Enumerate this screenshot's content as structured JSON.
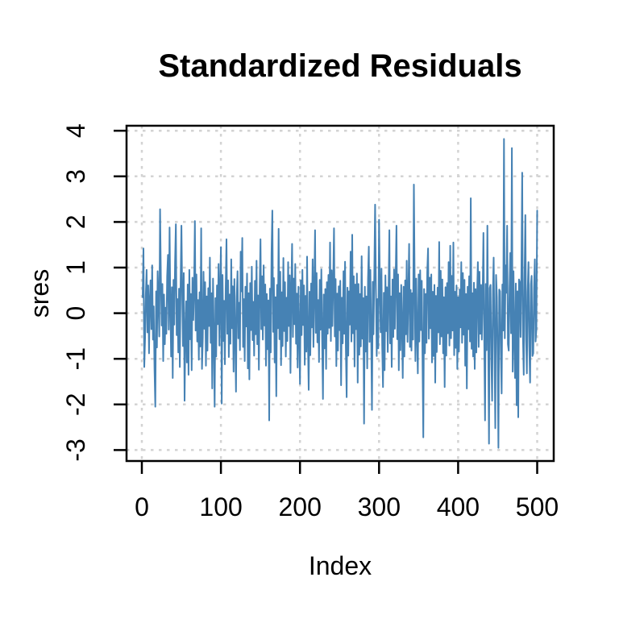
{
  "figure": {
    "background": "#ffffff"
  },
  "chart_data": {
    "type": "line",
    "title": "Standardized Residuals",
    "xlabel": "Index",
    "ylabel": "sres",
    "x_ticks": [
      0,
      100,
      200,
      300,
      400,
      500
    ],
    "y_ticks": [
      -3,
      -2,
      -1,
      0,
      1,
      2,
      3,
      4
    ],
    "xlim": [
      -19.4,
      520.9
    ],
    "ylim": [
      -3.24,
      4.11
    ],
    "x_start_index": 1,
    "grid": true,
    "grid_style": "dashed",
    "legend_position": "none",
    "line_color": "#4682B4",
    "grid_color": "#D3D3D3",
    "axis_color": "#000000",
    "values": [
      0.35,
      1.42,
      -1.18,
      -0.55,
      0.38,
      0.95,
      -0.42,
      0.61,
      -0.88,
      0.25,
      0.72,
      -0.35,
      1.05,
      -0.58,
      0.15,
      -1.22,
      -2.05,
      0.48,
      -0.75,
      0.92,
      0.33,
      -0.51,
      2.28,
      0.78,
      -0.27,
      0.64,
      -1.05,
      0.41,
      -0.68,
      0.12,
      -0.45,
      0.82,
      1.28,
      -0.36,
      1.88,
      0.22,
      -0.95,
      0.57,
      -1.42,
      0.73,
      -0.25,
      1.12,
      1.95,
      -0.48,
      0.31,
      -0.86,
      0.54,
      -1.18,
      0.67,
      1.92,
      0.35,
      -0.72,
      0.88,
      -1.92,
      -0.44,
      0.26,
      -1.08,
      0.63,
      -1.35,
      0.95,
      -0.57,
      0.42,
      -1.25,
      0.78,
      -0.15,
      0.52,
      2.02,
      -0.38,
      0.85,
      -0.62,
      0.29,
      -1.02,
      0.46,
      -0.73,
      1.86,
      -1.22,
      -0.55,
      0.91,
      -0.34,
      0.68,
      -1.15,
      0.37,
      -0.82,
      0.55,
      -0.28,
      1.22,
      -0.65,
      0.44,
      -1.65,
      0.76,
      -0.52,
      -2.05,
      0.33,
      -0.95,
      0.61,
      -0.24,
      1.08,
      -0.71,
      0.47,
      1.45,
      -1.98,
      0.84,
      -0.61,
      0.27,
      -1.12,
      0.53,
      1.62,
      -0.45,
      0.72,
      -0.96,
      0.41,
      -0.67,
      1.18,
      -0.33,
      0.59,
      -1.28,
      0.75,
      -0.48,
      -1.72,
      0.36,
      0.92,
      -0.55,
      0.23,
      -0.81,
      1.35,
      0.48,
      1.65,
      -0.74,
      0.31,
      -1.05,
      0.58,
      -0.29,
      0.87,
      -1.21,
      0.44,
      -1.45,
      0.66,
      -0.37,
      1.02,
      -0.59,
      0.25,
      -0.93,
      0.71,
      -0.46,
      1.15,
      -0.68,
      0.39,
      -1.24,
      0.57,
      1.62,
      -0.35,
      0.81,
      -0.58,
      1.05,
      -0.27,
      0.63,
      -1.15,
      0.42,
      -0.79,
      0.28,
      -2.35,
      0.54,
      -0.86,
      1.32,
      2.25,
      -0.41,
      0.77,
      -1.08,
      0.35,
      -1.82,
      0.62,
      -0.33,
      1.85,
      -0.57,
      0.91,
      -1.14,
      0.46,
      -0.72,
      1.21,
      -0.39,
      0.68,
      -0.95,
      0.34,
      -0.61,
      1.12,
      -0.28,
      0.83,
      -1.31,
      0.49,
      1.52,
      -0.52,
      0.76,
      -0.24,
      1.08,
      -0.67,
      0.43,
      -1.19,
      0.58,
      -0.35,
      -1.55,
      0.72,
      -0.48,
      0.95,
      -0.26,
      0.61,
      -1.13,
      0.38,
      -0.84,
      1.24,
      -0.55,
      -1.68,
      0.47,
      -0.92,
      0.65,
      -0.31,
      1.18,
      -0.74,
      0.52,
      1.82,
      -0.43,
      0.88,
      -0.64,
      0.29,
      -1.07,
      0.73,
      -0.36,
      0.96,
      -0.58,
      -1.88,
      0.41,
      -0.77,
      0.53,
      -1.22,
      0.68,
      -0.45,
      0.84,
      -0.32,
      1.55,
      -0.61,
      0.94,
      -0.28,
      0.67,
      1.86,
      -0.51,
      0.75,
      -1.16,
      0.43,
      -0.82,
      0.59,
      -0.37,
      0.71,
      -1.58,
      0.34,
      -0.66,
      0.92,
      -0.45,
      1.13,
      -0.78,
      -1.84,
      0.56,
      -0.93,
      0.48,
      -0.25,
      1.35,
      -0.62,
      1.72,
      -0.44,
      0.81,
      -1.17,
      0.63,
      -0.35,
      0.87,
      -1.52,
      0.64,
      -0.91,
      0.42,
      -0.73,
      1.25,
      -0.56,
      0.33,
      -2.42,
      0.58,
      -0.84,
      0.37,
      -1.21,
      0.75,
      1.46,
      -0.63,
      0.95,
      -0.41,
      -2.12,
      0.69,
      -0.46,
      0.88,
      2.38,
      0.52,
      -0.94,
      0.31,
      -0.77,
      2.05,
      0.65,
      -0.42,
      0.98,
      -0.71,
      -1.62,
      0.45,
      -1.25,
      0.83,
      -0.39,
      0.57,
      -0.85,
      0.48,
      1.82,
      -0.66,
      0.37,
      -1.18,
      0.74,
      -0.52,
      0.96,
      -0.34,
      0.78,
      1.92,
      -0.57,
      0.85,
      -1.25,
      0.44,
      -0.81,
      0.62,
      -0.35,
      -1.42,
      0.58,
      -0.95,
      0.72,
      -0.46,
      1.15,
      -0.63,
      0.39,
      1.52,
      -0.74,
      0.51,
      -0.82,
      0.44,
      -0.58,
      2.82,
      0.63,
      -1.05,
      0.76,
      -0.48,
      -1.32,
      0.85,
      -0.62,
      0.94,
      -0.37,
      0.71,
      -1.15,
      -2.72,
      0.53,
      -0.88,
      0.42,
      -0.65,
      0.91,
      1.42,
      -0.56,
      0.78,
      -0.33,
      0.85,
      -1.08,
      0.47,
      -0.94,
      0.62,
      -1.52,
      0.38,
      -0.85,
      0.56,
      -0.42,
      1.56,
      -0.68,
      0.93,
      -0.51,
      0.74,
      -0.88,
      0.35,
      -1.62,
      0.57,
      -0.93,
      0.66,
      -0.44,
      1.12,
      -0.71,
      1.48,
      -0.55,
      0.82,
      -0.38,
      1.55,
      -0.92,
      0.47,
      -0.76,
      0.61,
      -1.22,
      0.35,
      -0.84,
      0.52,
      -0.31,
      1.12,
      -0.65,
      0.88,
      -0.47,
      0.73,
      -1.15,
      0.42,
      -1.65,
      0.58,
      -0.35,
      0.81,
      -0.62,
      2.52,
      -0.78,
      0.44,
      -0.95,
      0.67,
      -1.22,
      0.53,
      -0.86,
      0.38,
      1.12,
      -0.74,
      0.91,
      -0.45,
      0.62,
      -0.58,
      0.35,
      1.76,
      -0.52,
      -2.35,
      0.64,
      -0.81,
      1.92,
      -0.43,
      -2.86,
      0.55,
      0.62,
      -0.95,
      -1.92,
      0.48,
      1.22,
      -0.66,
      -2.52,
      0.84,
      0.35,
      -1.05,
      -2.95,
      0.52,
      0.48,
      -0.85,
      -1.76,
      0.63,
      -0.38,
      3.82,
      -0.55,
      1.05,
      0.45,
      1.92,
      -0.68,
      -0.82,
      0.56,
      1.32,
      -0.44,
      3.62,
      -1.28,
      0.92,
      -0.57,
      -1.42,
      0.65,
      -2.02,
      0.48,
      -2.28,
      0.74,
      0.68,
      -0.52,
      0.85,
      3.08,
      -0.48,
      -1.35,
      0.72,
      2.15,
      -0.58,
      -1.32,
      0.46,
      1.12,
      -0.75,
      -1.52,
      0.63,
      0.82,
      -0.94,
      -0.88,
      0.55,
      1.18,
      -0.62,
      -0.35,
      2.25
    ]
  }
}
